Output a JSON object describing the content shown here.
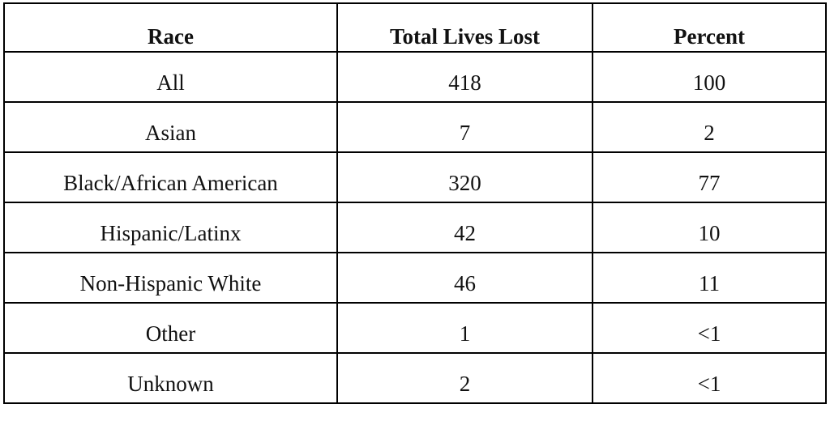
{
  "table": {
    "header": [
      "Race",
      "Total Lives Lost",
      "Percent"
    ],
    "rows": [
      [
        "All",
        418,
        100
      ],
      [
        "Asian",
        7,
        2
      ],
      [
        "Black/African American",
        320,
        77
      ],
      [
        "Hispanic/Latinx",
        42,
        10
      ],
      [
        "Non-Hispanic White",
        46,
        11
      ],
      [
        "Other",
        1,
        "<1"
      ],
      [
        "Unknown",
        2,
        "<1"
      ]
    ]
  }
}
